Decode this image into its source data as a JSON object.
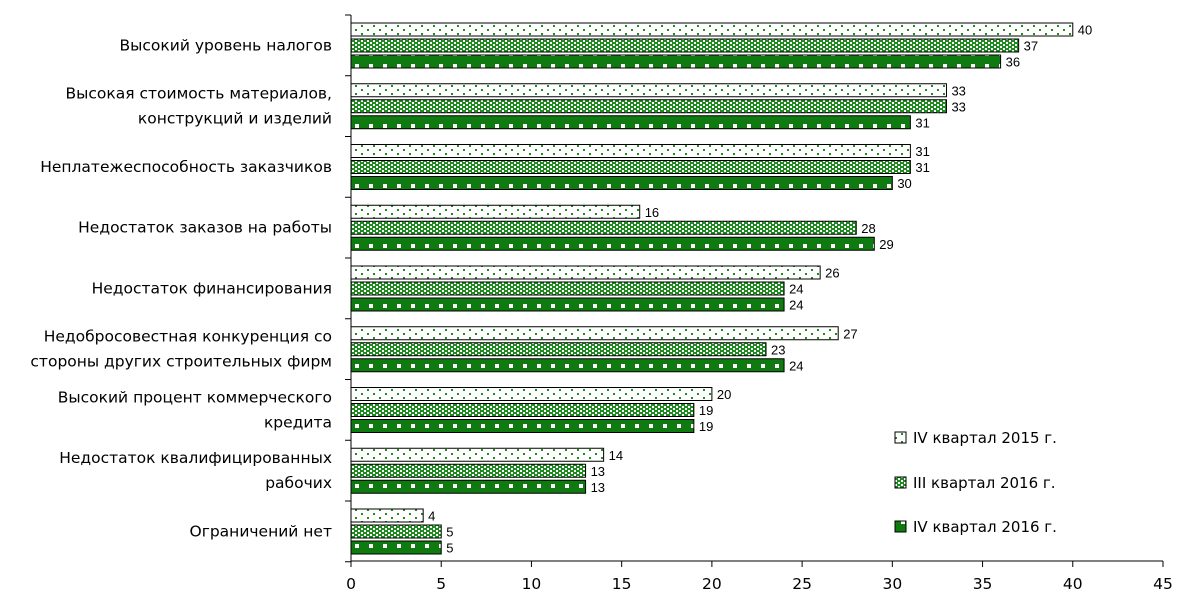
{
  "chart_data": {
    "type": "bar",
    "orientation": "horizontal",
    "categories": [
      [
        "Высокий уровень налогов"
      ],
      [
        "Высокая стоимость материалов,",
        "конструкций и изделий"
      ],
      [
        "Неплатежеспособность заказчиков"
      ],
      [
        "Недостаток заказов на работы"
      ],
      [
        "Недостаток финансирования"
      ],
      [
        "Недобросовестная конкуренция со",
        "стороны других строительных фирм"
      ],
      [
        "Высокий процент коммерческого",
        "кредита"
      ],
      [
        "Недостаток квалифицированных",
        "рабочих"
      ],
      [
        "Ограничений нет"
      ]
    ],
    "series": [
      {
        "name": "IV квартал 2015 г.",
        "values": [
          40,
          33,
          31,
          16,
          26,
          27,
          20,
          14,
          4
        ],
        "color": "#1f8a1f",
        "pattern": "sparse"
      },
      {
        "name": "III квартал 2016 г.",
        "values": [
          37,
          33,
          31,
          28,
          24,
          23,
          19,
          13,
          5
        ],
        "color": "#1f8a1f",
        "pattern": "dense"
      },
      {
        "name": "IV квартал 2016 г.",
        "values": [
          36,
          31,
          30,
          29,
          24,
          24,
          19,
          13,
          5
        ],
        "color": "#0f7a0f",
        "pattern": "solid"
      }
    ],
    "xlim": [
      0,
      45
    ],
    "xticks": [
      0,
      5,
      10,
      15,
      20,
      25,
      30,
      35,
      40,
      45
    ],
    "legend_position": "bottom-right",
    "grid": false
  }
}
